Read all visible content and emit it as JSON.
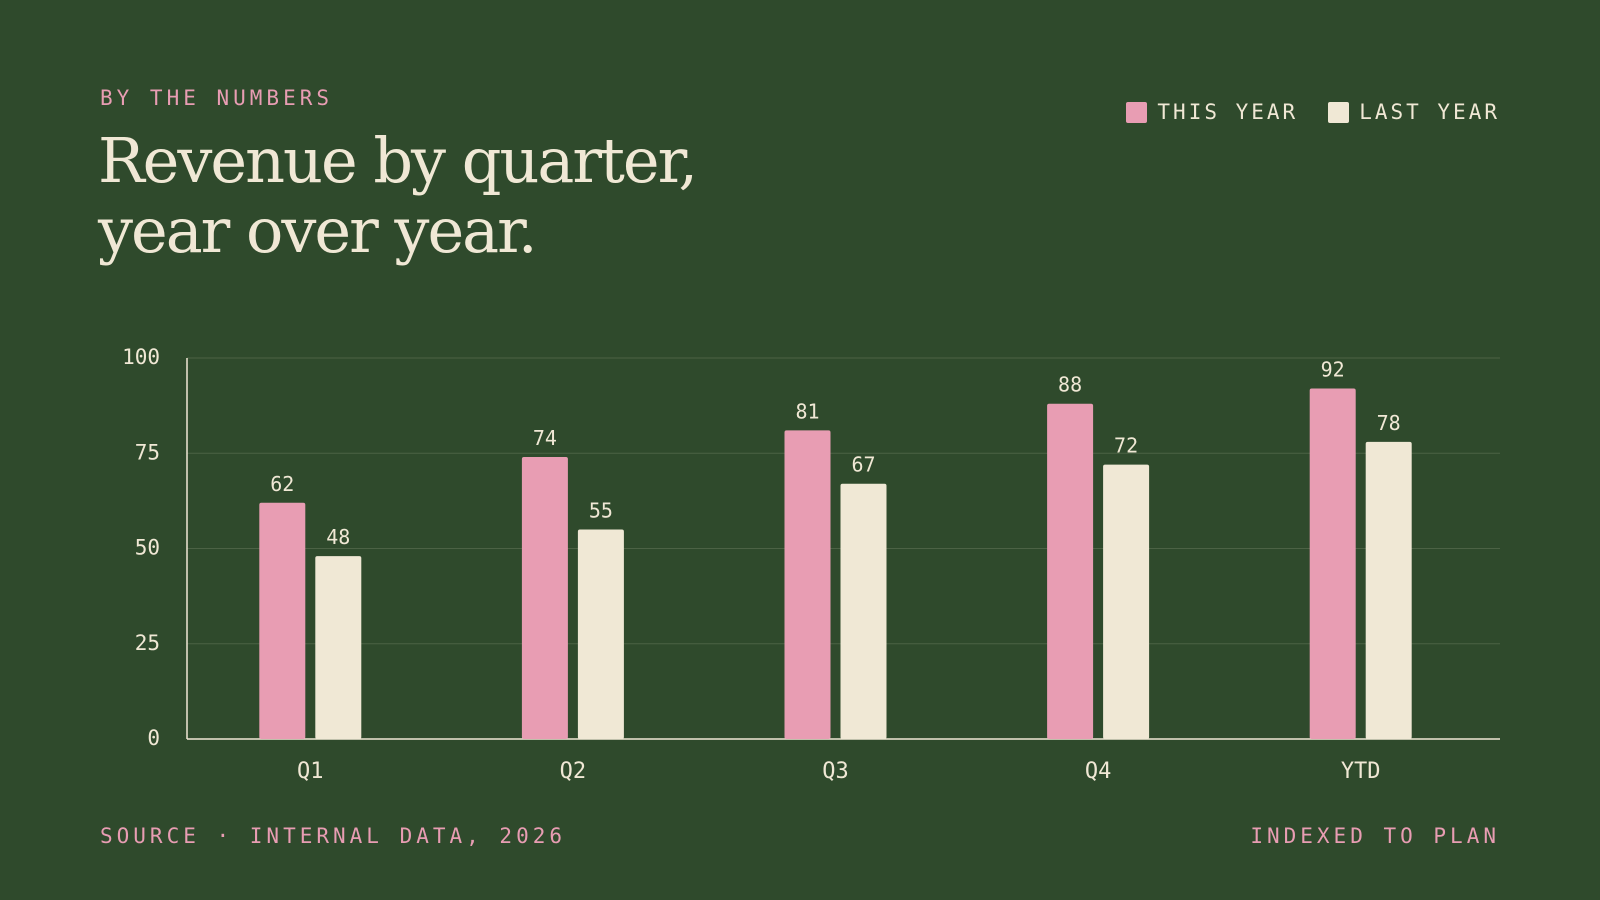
{
  "header": {
    "kicker": "BY THE NUMBERS",
    "title_line1": "Revenue by quarter,",
    "title_line2": "year over year."
  },
  "legend": [
    {
      "label": "THIS YEAR",
      "color": "#e89db3"
    },
    {
      "label": "LAST YEAR",
      "color": "#f0e8d5"
    }
  ],
  "footer": {
    "source": "SOURCE · INTERNAL DATA, 2026",
    "note": "INDEXED TO PLAN"
  },
  "colors": {
    "background": "#2f4a2c",
    "text": "#f0e8d5",
    "accent": "#e89db3"
  },
  "chart_data": {
    "type": "bar",
    "categories": [
      "Q1",
      "Q2",
      "Q3",
      "Q4",
      "YTD"
    ],
    "series": [
      {
        "name": "THIS YEAR",
        "values": [
          62,
          74,
          81,
          88,
          92
        ],
        "color": "#e89db3"
      },
      {
        "name": "LAST YEAR",
        "values": [
          48,
          55,
          67,
          72,
          78
        ],
        "color": "#f0e8d5"
      }
    ],
    "yticks": [
      0,
      25,
      50,
      75,
      100
    ],
    "ylim": [
      0,
      100
    ],
    "grid": true,
    "legend_position": "top-right"
  }
}
